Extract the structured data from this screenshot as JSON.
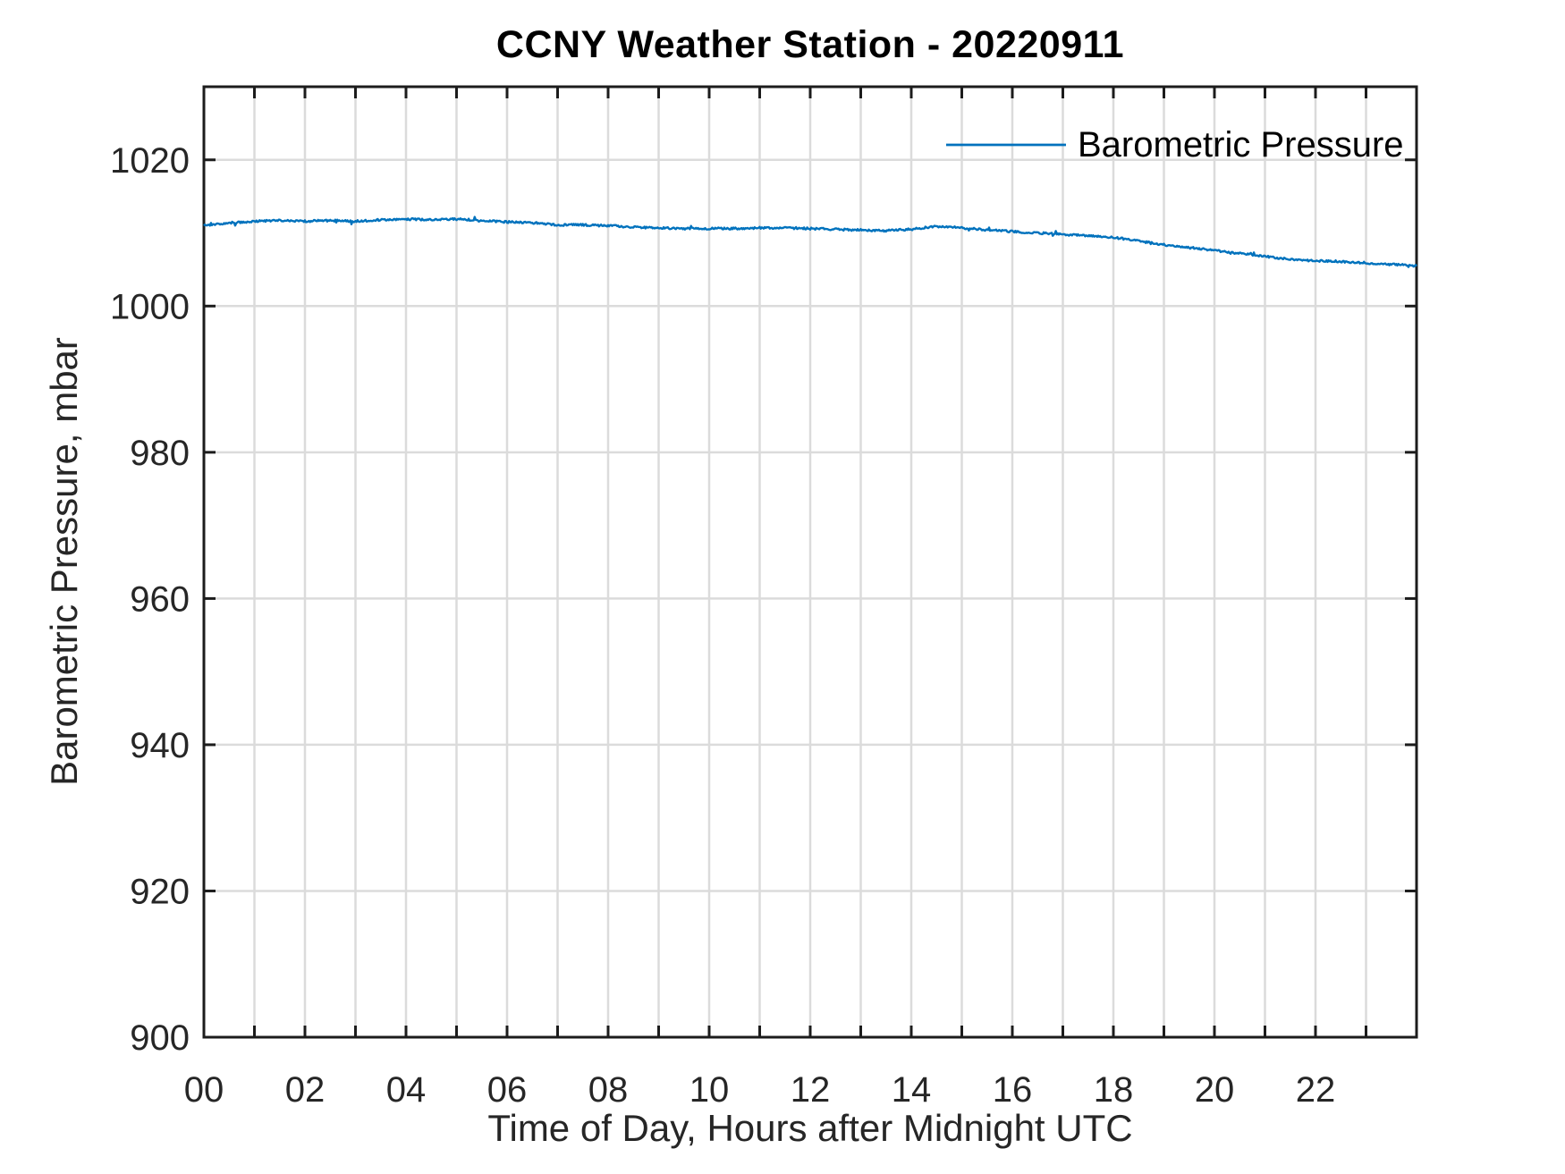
{
  "figure": {
    "background": "#ffffff"
  },
  "chart_data": {
    "type": "line",
    "title": "CCNY Weather Station - 20220911",
    "xlabel": "Time of Day, Hours after Midnight UTC",
    "ylabel": "Barometric Pressure, mbar",
    "xlim": [
      0,
      24
    ],
    "ylim": [
      900,
      1030
    ],
    "grid": true,
    "x_gridline_step_hours": 1,
    "x_tick_labels": [
      {
        "value": 0,
        "label": "00"
      },
      {
        "value": 2,
        "label": "02"
      },
      {
        "value": 4,
        "label": "04"
      },
      {
        "value": 6,
        "label": "06"
      },
      {
        "value": 8,
        "label": "08"
      },
      {
        "value": 10,
        "label": "10"
      },
      {
        "value": 12,
        "label": "12"
      },
      {
        "value": 14,
        "label": "14"
      },
      {
        "value": 16,
        "label": "16"
      },
      {
        "value": 18,
        "label": "18"
      },
      {
        "value": 20,
        "label": "20"
      },
      {
        "value": 22,
        "label": "22"
      }
    ],
    "y_tick_labels": [
      {
        "value": 900,
        "label": "900"
      },
      {
        "value": 920,
        "label": "920"
      },
      {
        "value": 940,
        "label": "940"
      },
      {
        "value": 960,
        "label": "960"
      },
      {
        "value": 980,
        "label": "980"
      },
      {
        "value": 1000,
        "label": "1000"
      },
      {
        "value": 1020,
        "label": "1020"
      }
    ],
    "legend_position": "northeast",
    "legend_box": false,
    "series": [
      {
        "name": "Barometric Pressure",
        "color": "#0072BD",
        "noise_mbar": 0.14,
        "x": [
          0,
          0.5,
          1,
          1.5,
          2,
          2.5,
          3,
          3.5,
          4,
          4.5,
          5,
          5.5,
          6,
          6.5,
          7,
          7.5,
          8,
          8.5,
          9,
          9.5,
          10,
          10.5,
          11,
          11.5,
          12,
          12.5,
          13,
          13.5,
          14,
          14.5,
          15,
          15.5,
          16,
          16.5,
          17,
          17.5,
          18,
          18.5,
          19,
          19.5,
          20,
          20.5,
          21,
          21.5,
          22,
          22.5,
          23,
          23.5,
          24
        ],
        "y": [
          1011.0,
          1011.4,
          1011.6,
          1011.7,
          1011.6,
          1011.7,
          1011.6,
          1011.8,
          1011.9,
          1011.8,
          1011.9,
          1011.7,
          1011.5,
          1011.4,
          1011.1,
          1011.1,
          1011.0,
          1010.8,
          1010.7,
          1010.6,
          1010.6,
          1010.6,
          1010.7,
          1010.7,
          1010.6,
          1010.5,
          1010.4,
          1010.3,
          1010.5,
          1010.9,
          1010.7,
          1010.4,
          1010.2,
          1010.0,
          1009.8,
          1009.6,
          1009.4,
          1008.9,
          1008.4,
          1008.0,
          1007.6,
          1007.2,
          1006.8,
          1006.4,
          1006.2,
          1006.1,
          1005.9,
          1005.7,
          1005.5
        ]
      }
    ],
    "colors": {
      "line": "#0072BD",
      "grid": "#dbdbdb",
      "axis": "#1c1c1c",
      "tick_text": "#262626"
    }
  }
}
